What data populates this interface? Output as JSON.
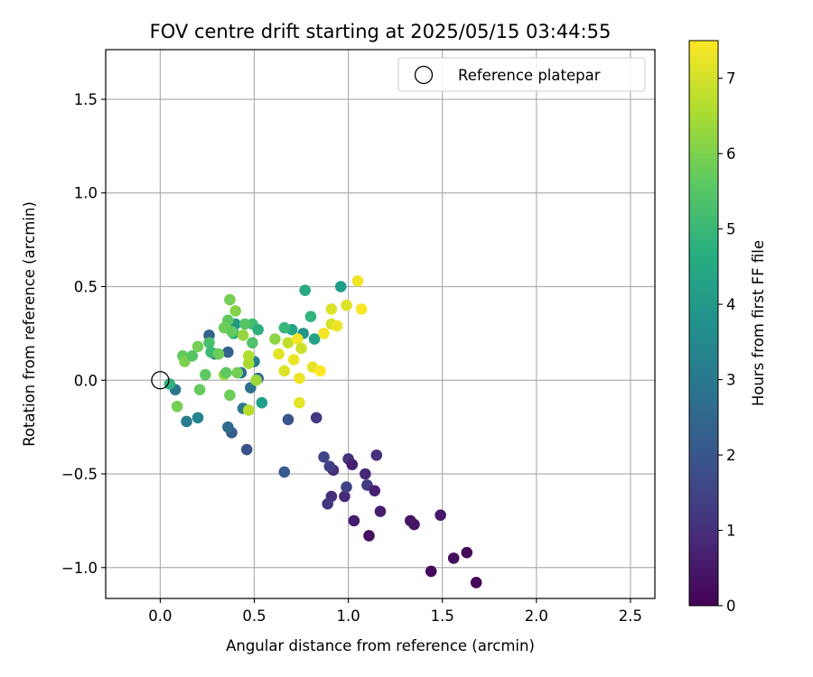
{
  "chart_data": {
    "type": "scatter",
    "title": "FOV centre drift starting at 2025/05/15 03:44:55",
    "xlabel": "Angular distance from reference (arcmin)",
    "ylabel": "Rotation from reference (arcmin)",
    "xlim": [
      -0.29,
      2.63
    ],
    "ylim": [
      -1.165,
      1.765
    ],
    "xticks": [
      0.0,
      0.5,
      1.0,
      1.5,
      2.0,
      2.5
    ],
    "xtick_labels": [
      "0.0",
      "0.5",
      "1.0",
      "1.5",
      "2.0",
      "2.5"
    ],
    "yticks": [
      1.5,
      1.0,
      0.5,
      0.0,
      -0.5,
      -1.0
    ],
    "ytick_labels": [
      "1.5",
      "1.0",
      "0.5",
      "0.0",
      "−0.5",
      "−1.0"
    ],
    "grid": true,
    "legend": {
      "position": "top-right",
      "entries": [
        {
          "label": "Reference platepar",
          "marker": "open-circle"
        }
      ]
    },
    "reference_point": {
      "x": 0.0,
      "y": 0.0
    },
    "colorbar": {
      "label": "Hours from first FF file",
      "colormap": "viridis",
      "range": [
        0,
        7.5
      ],
      "ticks": [
        0,
        1,
        2,
        3,
        4,
        5,
        6,
        7
      ],
      "tick_labels": [
        "0",
        "1",
        "2",
        "3",
        "4",
        "5",
        "6",
        "7"
      ]
    },
    "points": [
      {
        "x": 1.68,
        "y": -1.08,
        "h": 0.1
      },
      {
        "x": 1.44,
        "y": -1.02,
        "h": 0.2
      },
      {
        "x": 1.56,
        "y": -0.95,
        "h": 0.3
      },
      {
        "x": 1.63,
        "y": -0.92,
        "h": 0.15
      },
      {
        "x": 1.11,
        "y": -0.83,
        "h": 0.35
      },
      {
        "x": 1.33,
        "y": -0.75,
        "h": 0.4
      },
      {
        "x": 1.35,
        "y": -0.77,
        "h": 0.45
      },
      {
        "x": 1.49,
        "y": -0.72,
        "h": 0.5
      },
      {
        "x": 1.03,
        "y": -0.75,
        "h": 0.55
      },
      {
        "x": 1.17,
        "y": -0.7,
        "h": 0.6
      },
      {
        "x": 0.91,
        "y": -0.62,
        "h": 1.0
      },
      {
        "x": 0.98,
        "y": -0.62,
        "h": 0.9
      },
      {
        "x": 0.89,
        "y": -0.66,
        "h": 1.2
      },
      {
        "x": 0.99,
        "y": -0.57,
        "h": 1.5
      },
      {
        "x": 1.1,
        "y": -0.56,
        "h": 1.3
      },
      {
        "x": 1.14,
        "y": -0.59,
        "h": 0.7
      },
      {
        "x": 1.09,
        "y": -0.5,
        "h": 0.8
      },
      {
        "x": 0.92,
        "y": -0.48,
        "h": 0.95
      },
      {
        "x": 0.9,
        "y": -0.46,
        "h": 1.4
      },
      {
        "x": 0.87,
        "y": -0.41,
        "h": 1.6
      },
      {
        "x": 1.0,
        "y": -0.42,
        "h": 1.1
      },
      {
        "x": 1.02,
        "y": -0.45,
        "h": 0.65
      },
      {
        "x": 1.15,
        "y": -0.4,
        "h": 1.05
      },
      {
        "x": 0.83,
        "y": -0.2,
        "h": 1.25
      },
      {
        "x": 0.68,
        "y": -0.21,
        "h": 2.0
      },
      {
        "x": 0.66,
        "y": -0.49,
        "h": 2.1
      },
      {
        "x": 0.46,
        "y": -0.37,
        "h": 1.9
      },
      {
        "x": 0.38,
        "y": -0.28,
        "h": 2.2
      },
      {
        "x": 0.36,
        "y": -0.25,
        "h": 2.6
      },
      {
        "x": 0.44,
        "y": -0.15,
        "h": 3.0
      },
      {
        "x": 0.48,
        "y": -0.04,
        "h": 2.8
      },
      {
        "x": 0.52,
        "y": 0.01,
        "h": 2.5
      },
      {
        "x": 0.43,
        "y": 0.04,
        "h": 2.7
      },
      {
        "x": 0.5,
        "y": 0.1,
        "h": 3.2
      },
      {
        "x": 0.36,
        "y": 0.15,
        "h": 2.3
      },
      {
        "x": 0.26,
        "y": 0.24,
        "h": 2.4
      },
      {
        "x": 0.29,
        "y": 0.14,
        "h": 3.3
      },
      {
        "x": 0.4,
        "y": 0.3,
        "h": 4.0
      },
      {
        "x": 0.39,
        "y": 0.25,
        "h": 4.6
      },
      {
        "x": 0.14,
        "y": -0.22,
        "h": 3.1
      },
      {
        "x": 0.2,
        "y": -0.2,
        "h": 3.4
      },
      {
        "x": 0.08,
        "y": -0.05,
        "h": 2.9
      },
      {
        "x": 0.05,
        "y": -0.02,
        "h": 4.8
      },
      {
        "x": 0.54,
        "y": -0.12,
        "h": 4.2
      },
      {
        "x": 0.77,
        "y": 0.48,
        "h": 4.5
      },
      {
        "x": 0.96,
        "y": 0.5,
        "h": 4.1
      },
      {
        "x": 0.8,
        "y": 0.34,
        "h": 4.9
      },
      {
        "x": 0.82,
        "y": 0.22,
        "h": 4.3
      },
      {
        "x": 0.76,
        "y": 0.25,
        "h": 3.9
      },
      {
        "x": 0.7,
        "y": 0.27,
        "h": 4.4
      },
      {
        "x": 0.66,
        "y": 0.28,
        "h": 5.0
      },
      {
        "x": 0.49,
        "y": 0.3,
        "h": 5.2
      },
      {
        "x": 0.52,
        "y": 0.27,
        "h": 4.7
      },
      {
        "x": 0.45,
        "y": 0.3,
        "h": 5.5
      },
      {
        "x": 0.37,
        "y": 0.43,
        "h": 5.9
      },
      {
        "x": 0.4,
        "y": 0.37,
        "h": 6.1
      },
      {
        "x": 0.36,
        "y": 0.32,
        "h": 5.6
      },
      {
        "x": 0.34,
        "y": 0.28,
        "h": 5.8
      },
      {
        "x": 0.38,
        "y": 0.26,
        "h": 5.7
      },
      {
        "x": 0.44,
        "y": 0.24,
        "h": 6.3
      },
      {
        "x": 0.49,
        "y": 0.2,
        "h": 5.4
      },
      {
        "x": 0.26,
        "y": 0.2,
        "h": 5.3
      },
      {
        "x": 0.27,
        "y": 0.15,
        "h": 5.1
      },
      {
        "x": 0.31,
        "y": 0.14,
        "h": 5.8
      },
      {
        "x": 0.2,
        "y": 0.18,
        "h": 5.9
      },
      {
        "x": 0.12,
        "y": 0.13,
        "h": 5.7
      },
      {
        "x": 0.13,
        "y": 0.1,
        "h": 6.0
      },
      {
        "x": 0.17,
        "y": 0.13,
        "h": 5.5
      },
      {
        "x": 0.24,
        "y": 0.03,
        "h": 5.6
      },
      {
        "x": 0.34,
        "y": 0.03,
        "h": 6.4
      },
      {
        "x": 0.35,
        "y": 0.04,
        "h": 5.6
      },
      {
        "x": 0.41,
        "y": 0.04,
        "h": 5.9
      },
      {
        "x": 0.47,
        "y": 0.09,
        "h": 6.5
      },
      {
        "x": 0.47,
        "y": 0.13,
        "h": 6.6
      },
      {
        "x": 0.51,
        "y": 0.0,
        "h": 6.4
      },
      {
        "x": 0.21,
        "y": -0.05,
        "h": 5.7
      },
      {
        "x": 0.37,
        "y": -0.08,
        "h": 5.8
      },
      {
        "x": 0.09,
        "y": -0.14,
        "h": 5.9
      },
      {
        "x": 0.47,
        "y": -0.16,
        "h": 6.7
      },
      {
        "x": 0.61,
        "y": 0.22,
        "h": 6.2
      },
      {
        "x": 0.63,
        "y": 0.14,
        "h": 7.2
      },
      {
        "x": 0.66,
        "y": 0.05,
        "h": 7.1
      },
      {
        "x": 0.68,
        "y": 0.2,
        "h": 6.8
      },
      {
        "x": 0.71,
        "y": 0.11,
        "h": 7.3
      },
      {
        "x": 0.73,
        "y": 0.22,
        "h": 7.4
      },
      {
        "x": 0.75,
        "y": 0.17,
        "h": 6.9
      },
      {
        "x": 0.74,
        "y": 0.01,
        "h": 7.3
      },
      {
        "x": 0.74,
        "y": -0.12,
        "h": 7.2
      },
      {
        "x": 0.81,
        "y": 0.07,
        "h": 7.2
      },
      {
        "x": 0.85,
        "y": 0.05,
        "h": 7.5
      },
      {
        "x": 0.87,
        "y": 0.25,
        "h": 7.4
      },
      {
        "x": 0.91,
        "y": 0.38,
        "h": 7.1
      },
      {
        "x": 0.91,
        "y": 0.3,
        "h": 7.0
      },
      {
        "x": 0.94,
        "y": 0.29,
        "h": 7.3
      },
      {
        "x": 0.99,
        "y": 0.4,
        "h": 7.15
      },
      {
        "x": 1.05,
        "y": 0.53,
        "h": 7.35
      },
      {
        "x": 1.07,
        "y": 0.38,
        "h": 7.45
      }
    ]
  }
}
